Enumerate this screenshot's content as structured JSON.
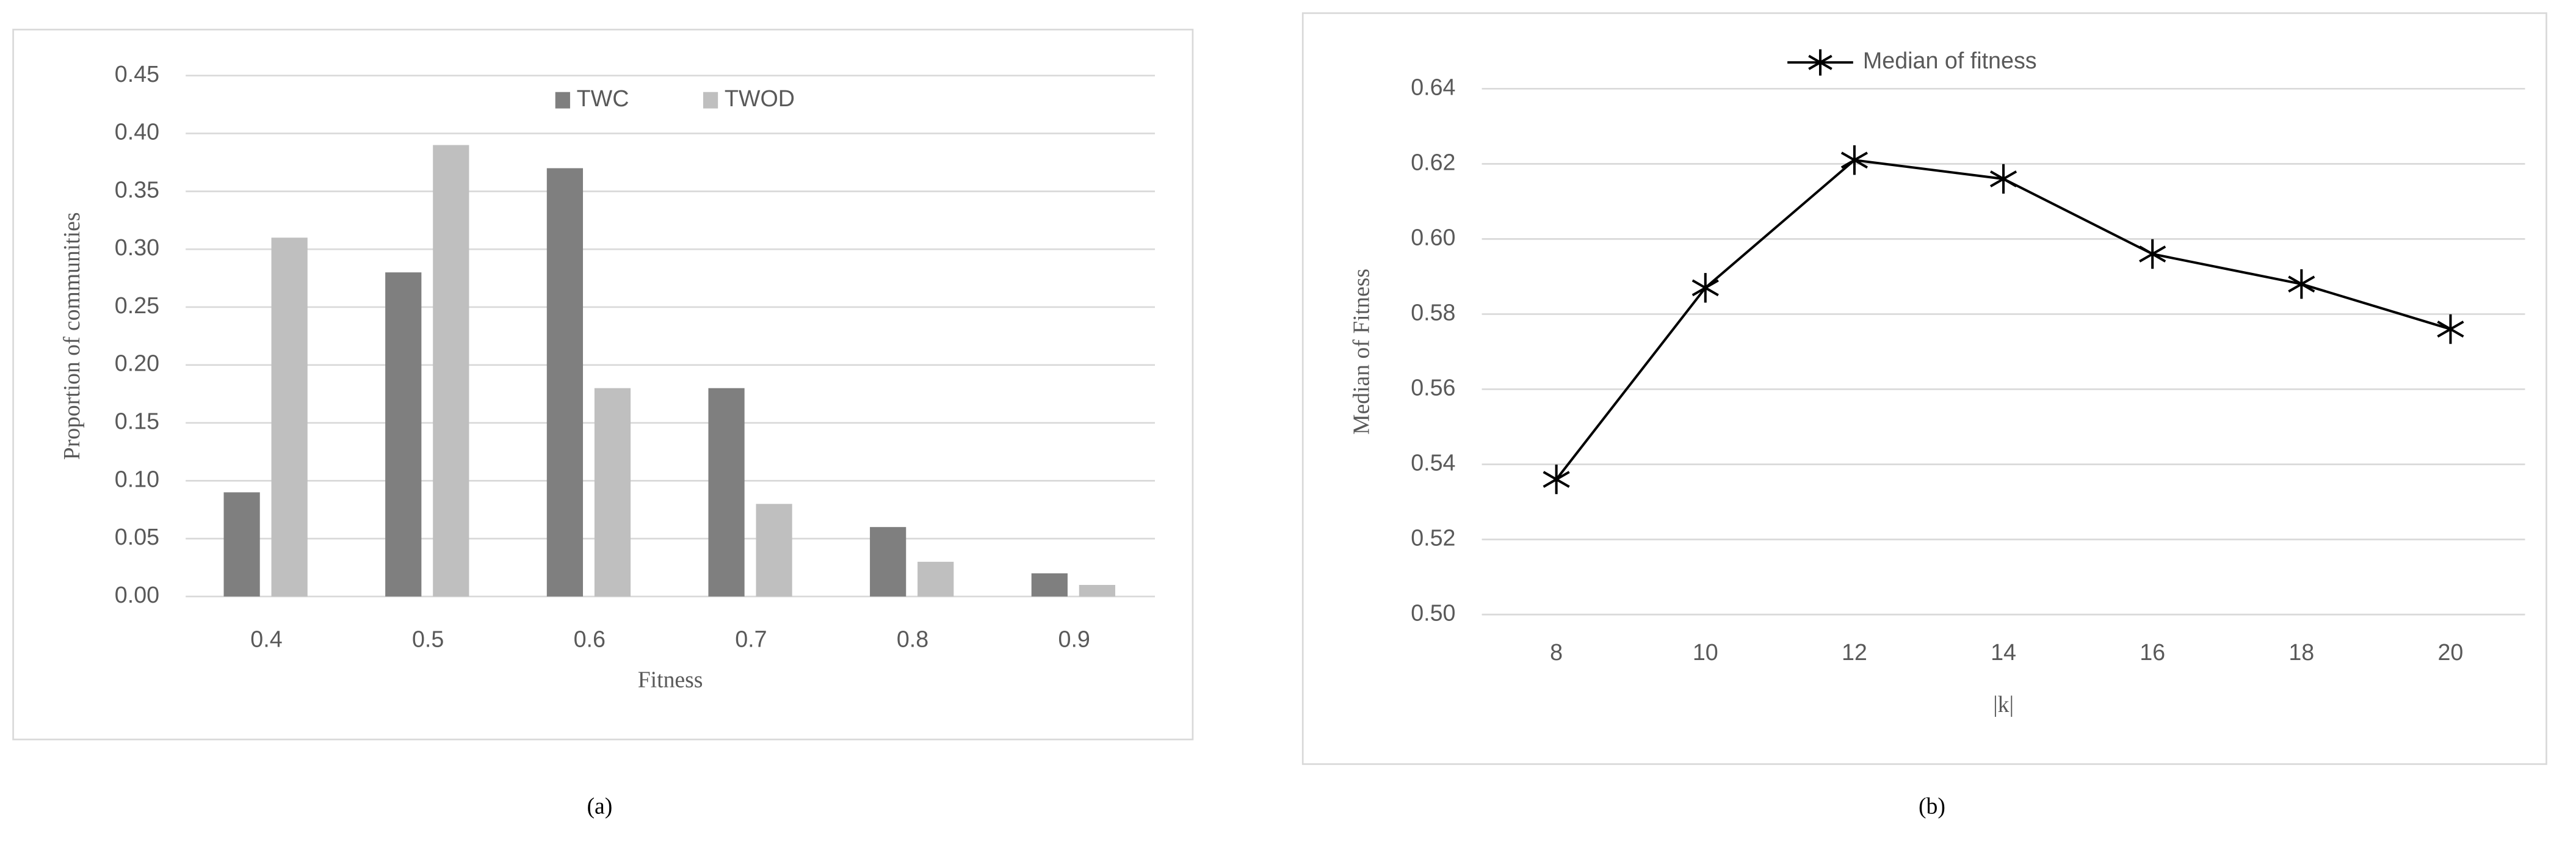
{
  "chart_data": [
    {
      "type": "bar",
      "caption": "(a)",
      "x_label": "Fitness",
      "y_label": "Proportion of communities",
      "categories": [
        "0.4",
        "0.5",
        "0.6",
        "0.7",
        "0.8",
        "0.9"
      ],
      "series": [
        {
          "name": "TWC",
          "color": "#7f7f7f",
          "values": [
            0.09,
            0.28,
            0.37,
            0.18,
            0.06,
            0.02
          ]
        },
        {
          "name": "TWOD",
          "color": "#bfbfbf",
          "values": [
            0.31,
            0.39,
            0.18,
            0.08,
            0.03,
            0.01
          ]
        }
      ],
      "ylim": [
        0,
        0.45
      ],
      "yticks": [
        {
          "value": 0,
          "label": "0.00"
        },
        {
          "value": 0.05,
          "label": "0.05"
        },
        {
          "value": 0.1,
          "label": "0.10"
        },
        {
          "value": 0.15,
          "label": "0.15"
        },
        {
          "value": 0.2,
          "label": "0.20"
        },
        {
          "value": 0.25,
          "label": "0.25"
        },
        {
          "value": 0.3,
          "label": "0.30"
        },
        {
          "value": 0.35,
          "label": "0.35"
        },
        {
          "value": 0.4,
          "label": "0.40"
        },
        {
          "value": 0.45,
          "label": "0.45"
        }
      ],
      "grid": true,
      "legend": "top"
    },
    {
      "type": "line",
      "caption": "(b)",
      "x_label": "|k|",
      "y_label": "Median of Fitness",
      "x": [
        8,
        10,
        12,
        14,
        16,
        18,
        20
      ],
      "series": [
        {
          "name": "Median of fitness",
          "color": "#000000",
          "values": [
            0.536,
            0.587,
            0.621,
            0.616,
            0.596,
            0.588,
            0.576
          ]
        }
      ],
      "xlim": [
        7,
        21
      ],
      "xticks": [
        8,
        10,
        12,
        14,
        16,
        18,
        20
      ],
      "ylim": [
        0.5,
        0.64
      ],
      "yticks": [
        {
          "value": 0.5,
          "label": "0.50"
        },
        {
          "value": 0.52,
          "label": "0.52"
        },
        {
          "value": 0.54,
          "label": "0.54"
        },
        {
          "value": 0.56,
          "label": "0.56"
        },
        {
          "value": 0.58,
          "label": "0.58"
        },
        {
          "value": 0.6,
          "label": "0.60"
        },
        {
          "value": 0.62,
          "label": "0.62"
        },
        {
          "value": 0.64,
          "label": "0.64"
        }
      ],
      "grid": true,
      "legend": "top"
    }
  ]
}
